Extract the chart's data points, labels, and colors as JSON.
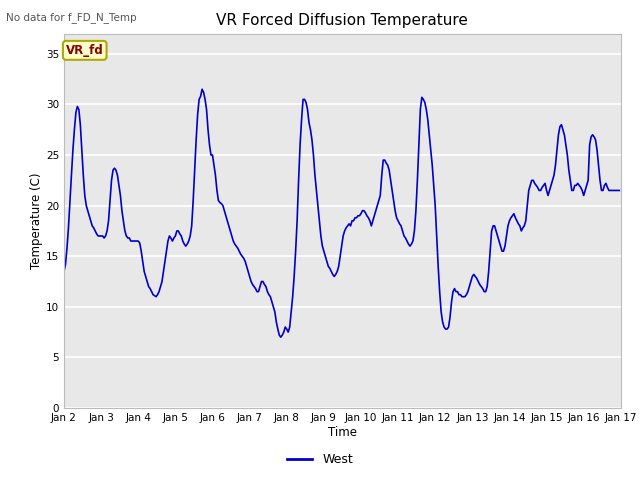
{
  "title": "VR Forced Diffusion Temperature",
  "xlabel": "Time",
  "ylabel": "Temperature (C)",
  "no_data_label": "No data for f_FD_N_Temp",
  "vr_fd_label": "VR_fd",
  "legend_label": "West",
  "line_color": "#0000cc",
  "plot_bg_color": "#e8e8e8",
  "ylim": [
    0,
    37
  ],
  "yticks": [
    0,
    5,
    10,
    15,
    20,
    25,
    30,
    35
  ],
  "xtick_labels": [
    "Jan 2",
    "Jan 3",
    "Jan 4",
    "Jan 5",
    "Jan 6",
    "Jan 7",
    "Jan 8",
    "Jan 9",
    "Jan 10",
    "Jan 11",
    "Jan 12",
    "Jan 13",
    "Jan 14",
    "Jan 15",
    "Jan 16",
    "Jan 17"
  ],
  "xtick_positions": [
    2,
    3,
    4,
    5,
    6,
    7,
    8,
    9,
    10,
    11,
    12,
    13,
    14,
    15,
    16,
    17
  ],
  "x_start": 2,
  "x_end": 17,
  "x_values": [
    2.0,
    2.04,
    2.08,
    2.12,
    2.16,
    2.2,
    2.24,
    2.28,
    2.32,
    2.36,
    2.4,
    2.44,
    2.48,
    2.52,
    2.56,
    2.6,
    2.64,
    2.68,
    2.72,
    2.76,
    2.8,
    2.84,
    2.88,
    2.92,
    2.96,
    3.0,
    3.04,
    3.08,
    3.12,
    3.16,
    3.2,
    3.24,
    3.28,
    3.32,
    3.36,
    3.4,
    3.44,
    3.48,
    3.52,
    3.56,
    3.6,
    3.64,
    3.68,
    3.72,
    3.76,
    3.8,
    3.84,
    3.88,
    3.92,
    3.96,
    4.0,
    4.04,
    4.08,
    4.12,
    4.16,
    4.2,
    4.24,
    4.28,
    4.32,
    4.36,
    4.4,
    4.44,
    4.48,
    4.52,
    4.56,
    4.6,
    4.64,
    4.68,
    4.72,
    4.76,
    4.8,
    4.84,
    4.88,
    4.92,
    4.96,
    5.0,
    5.04,
    5.08,
    5.12,
    5.16,
    5.2,
    5.24,
    5.28,
    5.32,
    5.36,
    5.4,
    5.44,
    5.48,
    5.52,
    5.56,
    5.6,
    5.64,
    5.68,
    5.72,
    5.76,
    5.8,
    5.84,
    5.88,
    5.92,
    5.96,
    6.0,
    6.04,
    6.08,
    6.12,
    6.16,
    6.2,
    6.24,
    6.28,
    6.32,
    6.36,
    6.4,
    6.44,
    6.48,
    6.52,
    6.56,
    6.6,
    6.64,
    6.68,
    6.72,
    6.76,
    6.8,
    6.84,
    6.88,
    6.92,
    6.96,
    7.0,
    7.04,
    7.08,
    7.12,
    7.16,
    7.2,
    7.24,
    7.28,
    7.32,
    7.36,
    7.4,
    7.44,
    7.48,
    7.52,
    7.56,
    7.6,
    7.64,
    7.68,
    7.72,
    7.76,
    7.8,
    7.84,
    7.88,
    7.92,
    7.96,
    8.0,
    8.04,
    8.08,
    8.12,
    8.16,
    8.2,
    8.24,
    8.28,
    8.32,
    8.36,
    8.4,
    8.44,
    8.48,
    8.52,
    8.56,
    8.6,
    8.64,
    8.68,
    8.72,
    8.76,
    8.8,
    8.84,
    8.88,
    8.92,
    8.96,
    9.0,
    9.04,
    9.08,
    9.12,
    9.16,
    9.2,
    9.24,
    9.28,
    9.32,
    9.36,
    9.4,
    9.44,
    9.48,
    9.52,
    9.56,
    9.6,
    9.64,
    9.68,
    9.72,
    9.76,
    9.8,
    9.84,
    9.88,
    9.92,
    9.96,
    10.0,
    10.04,
    10.08,
    10.12,
    10.16,
    10.2,
    10.24,
    10.28,
    10.32,
    10.36,
    10.4,
    10.44,
    10.48,
    10.52,
    10.56,
    10.6,
    10.64,
    10.68,
    10.72,
    10.76,
    10.8,
    10.84,
    10.88,
    10.92,
    10.96,
    11.0,
    11.04,
    11.08,
    11.12,
    11.16,
    11.2,
    11.24,
    11.28,
    11.32,
    11.36,
    11.4,
    11.44,
    11.48,
    11.52,
    11.56,
    11.6,
    11.64,
    11.68,
    11.72,
    11.76,
    11.8,
    11.84,
    11.88,
    11.92,
    11.96,
    12.0,
    12.04,
    12.08,
    12.12,
    12.16,
    12.2,
    12.24,
    12.28,
    12.32,
    12.36,
    12.4,
    12.44,
    12.48,
    12.52,
    12.56,
    12.6,
    12.64,
    12.68,
    12.72,
    12.76,
    12.8,
    12.84,
    12.88,
    12.92,
    12.96,
    13.0,
    13.04,
    13.08,
    13.12,
    13.16,
    13.2,
    13.24,
    13.28,
    13.32,
    13.36,
    13.4,
    13.44,
    13.48,
    13.52,
    13.56,
    13.6,
    13.64,
    13.68,
    13.72,
    13.76,
    13.8,
    13.84,
    13.88,
    13.92,
    13.96,
    14.0,
    14.04,
    14.08,
    14.12,
    14.16,
    14.2,
    14.24,
    14.28,
    14.32,
    14.36,
    14.4,
    14.44,
    14.48,
    14.52,
    14.56,
    14.6,
    14.64,
    14.68,
    14.72,
    14.76,
    14.8,
    14.84,
    14.88,
    14.92,
    14.96,
    15.0,
    15.04,
    15.08,
    15.12,
    15.16,
    15.2,
    15.24,
    15.28,
    15.32,
    15.36,
    15.4,
    15.44,
    15.48,
    15.52,
    15.56,
    15.6,
    15.64,
    15.68,
    15.72,
    15.76,
    15.8,
    15.84,
    15.88,
    15.92,
    15.96,
    16.0,
    16.04,
    16.08,
    16.12,
    16.16,
    16.2,
    16.24,
    16.28,
    16.32,
    16.36,
    16.4,
    16.44,
    16.48,
    16.52,
    16.56,
    16.6,
    16.64,
    16.68,
    16.72,
    16.76,
    16.8,
    16.84,
    16.88,
    16.92,
    16.96
  ],
  "y_values": [
    13.5,
    14.2,
    15.8,
    17.8,
    20.5,
    23.0,
    25.5,
    27.5,
    29.2,
    29.8,
    29.5,
    28.0,
    25.5,
    23.0,
    21.0,
    20.0,
    19.5,
    19.0,
    18.5,
    18.0,
    17.8,
    17.5,
    17.2,
    17.0,
    17.0,
    17.0,
    17.0,
    16.8,
    17.0,
    17.5,
    18.5,
    20.5,
    22.5,
    23.5,
    23.7,
    23.5,
    23.0,
    22.0,
    21.0,
    19.5,
    18.5,
    17.5,
    17.0,
    16.8,
    16.8,
    16.5,
    16.5,
    16.5,
    16.5,
    16.5,
    16.5,
    16.3,
    15.5,
    14.5,
    13.5,
    13.0,
    12.5,
    12.0,
    11.8,
    11.5,
    11.2,
    11.1,
    11.0,
    11.2,
    11.5,
    12.0,
    12.5,
    13.5,
    14.5,
    15.5,
    16.5,
    17.0,
    16.8,
    16.5,
    16.8,
    17.0,
    17.5,
    17.5,
    17.2,
    17.0,
    16.5,
    16.2,
    16.0,
    16.2,
    16.5,
    17.0,
    18.0,
    20.5,
    23.5,
    26.5,
    29.0,
    30.5,
    30.8,
    31.5,
    31.2,
    30.5,
    29.5,
    27.5,
    26.0,
    25.0,
    25.0,
    24.0,
    23.0,
    21.5,
    20.5,
    20.3,
    20.2,
    20.0,
    19.5,
    19.0,
    18.5,
    18.0,
    17.5,
    17.0,
    16.5,
    16.2,
    16.0,
    15.8,
    15.5,
    15.2,
    15.0,
    14.8,
    14.5,
    14.0,
    13.5,
    13.0,
    12.5,
    12.2,
    12.0,
    11.8,
    11.5,
    11.5,
    12.0,
    12.5,
    12.5,
    12.2,
    12.0,
    11.5,
    11.2,
    11.0,
    10.5,
    10.0,
    9.5,
    8.5,
    7.8,
    7.2,
    7.0,
    7.2,
    7.5,
    8.0,
    7.8,
    7.5,
    8.0,
    9.5,
    11.0,
    13.0,
    15.5,
    18.5,
    22.5,
    26.0,
    28.5,
    30.5,
    30.5,
    30.2,
    29.5,
    28.2,
    27.5,
    26.5,
    25.0,
    23.0,
    21.5,
    20.0,
    18.5,
    17.0,
    16.0,
    15.5,
    15.0,
    14.5,
    14.0,
    13.8,
    13.5,
    13.2,
    13.0,
    13.2,
    13.5,
    14.0,
    15.0,
    16.0,
    17.0,
    17.5,
    17.8,
    18.0,
    18.2,
    18.0,
    18.5,
    18.5,
    18.8,
    18.8,
    19.0,
    19.0,
    19.2,
    19.5,
    19.5,
    19.3,
    19.0,
    18.8,
    18.5,
    18.0,
    18.5,
    19.0,
    19.5,
    20.0,
    20.5,
    21.0,
    23.0,
    24.5,
    24.5,
    24.2,
    24.0,
    23.5,
    22.5,
    21.5,
    20.5,
    19.5,
    18.8,
    18.5,
    18.2,
    18.0,
    17.5,
    17.0,
    16.8,
    16.5,
    16.2,
    16.0,
    16.2,
    16.5,
    17.5,
    19.5,
    22.5,
    26.0,
    29.5,
    30.7,
    30.5,
    30.2,
    29.5,
    28.5,
    27.0,
    25.5,
    24.0,
    22.0,
    20.0,
    17.0,
    14.0,
    11.5,
    9.5,
    8.5,
    8.0,
    7.8,
    7.8,
    8.0,
    9.0,
    10.5,
    11.5,
    11.8,
    11.5,
    11.5,
    11.2,
    11.2,
    11.0,
    11.0,
    11.0,
    11.2,
    11.5,
    12.0,
    12.5,
    13.0,
    13.2,
    13.0,
    12.8,
    12.5,
    12.2,
    12.0,
    11.8,
    11.5,
    11.5,
    12.0,
    13.5,
    15.5,
    17.5,
    18.0,
    18.0,
    17.5,
    17.0,
    16.5,
    16.0,
    15.5,
    15.5,
    16.0,
    17.0,
    18.0,
    18.5,
    18.8,
    19.0,
    19.2,
    18.8,
    18.5,
    18.2,
    18.0,
    17.5,
    17.8,
    18.0,
    18.5,
    20.0,
    21.5,
    22.0,
    22.5,
    22.5,
    22.2,
    22.0,
    21.8,
    21.5,
    21.5,
    21.8,
    22.0,
    22.2,
    21.5,
    21.0,
    21.5,
    22.0,
    22.5,
    23.0,
    24.0,
    25.5,
    27.0,
    27.8,
    28.0,
    27.5,
    27.0,
    26.0,
    25.0,
    23.5,
    22.5,
    21.5,
    21.5,
    22.0,
    22.0,
    22.2,
    22.0,
    21.8,
    21.5,
    21.0,
    21.5,
    22.0,
    22.5,
    26.0,
    26.8,
    27.0,
    26.8,
    26.5,
    25.5,
    24.0,
    22.5,
    21.5,
    21.5,
    22.0,
    22.2,
    21.8,
    21.5,
    21.5,
    21.5,
    21.5,
    21.5,
    21.5,
    21.5,
    21.5
  ]
}
